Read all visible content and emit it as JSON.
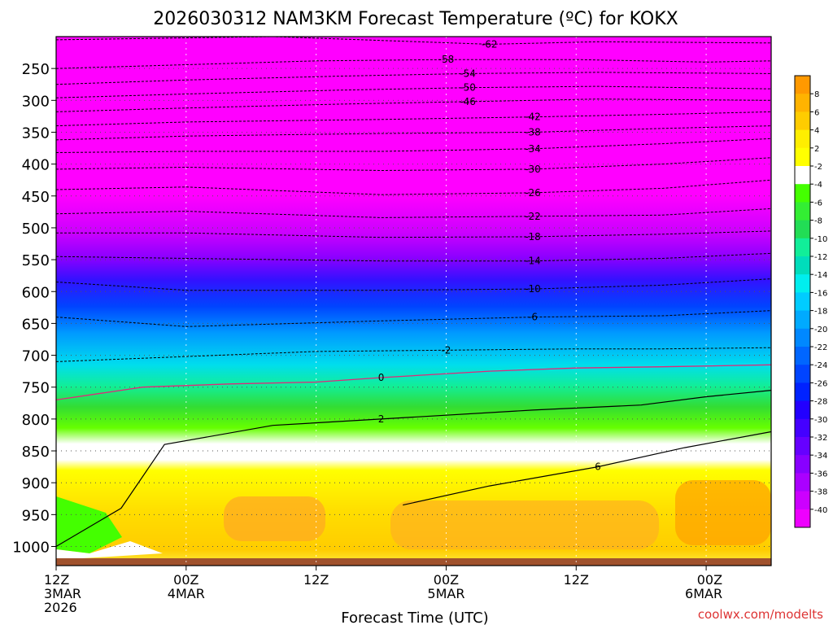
{
  "chart_data": {
    "type": "heatmap",
    "title": "2026030312 NAM3KM Forecast Temperature (ºC) for KOKX",
    "xlabel": "Forecast Time (UTC)",
    "ylabel": "",
    "x_domain": [
      0,
      66
    ],
    "y_domain": [
      200,
      1030
    ],
    "x_ticks": [
      {
        "hour": 0,
        "l1": "12Z",
        "l2": "3MAR",
        "l3": "2026"
      },
      {
        "hour": 12,
        "l1": "00Z",
        "l2": "4MAR",
        "l3": ""
      },
      {
        "hour": 24,
        "l1": "12Z",
        "l2": "",
        "l3": ""
      },
      {
        "hour": 36,
        "l1": "00Z",
        "l2": "5MAR",
        "l3": ""
      },
      {
        "hour": 48,
        "l1": "12Z",
        "l2": "",
        "l3": ""
      },
      {
        "hour": 60,
        "l1": "00Z",
        "l2": "6MAR",
        "l3": ""
      }
    ],
    "y_ticks": [
      {
        "p": 250,
        "label": "250"
      },
      {
        "p": 300,
        "label": "300"
      },
      {
        "p": 350,
        "label": "350"
      },
      {
        "p": 400,
        "label": "400"
      },
      {
        "p": 450,
        "label": "450"
      },
      {
        "p": 500,
        "label": "500"
      },
      {
        "p": 550,
        "label": "550"
      },
      {
        "p": 600,
        "label": "600"
      },
      {
        "p": 650,
        "label": "650"
      },
      {
        "p": 700,
        "label": "700"
      },
      {
        "p": 750,
        "label": "750"
      },
      {
        "p": 800,
        "label": "800"
      },
      {
        "p": 850,
        "label": "850"
      },
      {
        "p": 900,
        "label": "900"
      },
      {
        "p": 950,
        "label": "950"
      },
      {
        "p": 1000,
        "label": "1000"
      }
    ],
    "colorbar": {
      "labels": [
        "8",
        "6",
        "4",
        "2",
        "-2",
        "-4",
        "-6",
        "-8",
        "-10",
        "-12",
        "-14",
        "-16",
        "-18",
        "-20",
        "-22",
        "-24",
        "-26",
        "-28",
        "-30",
        "-32",
        "-34",
        "-36",
        "-38",
        "-40"
      ],
      "colors": [
        "#ff9900",
        "#ffb300",
        "#ffcc00",
        "#ffee00",
        "#ffff00",
        "#ffffff",
        "#44ff00",
        "#33ee33",
        "#22dd55",
        "#11ee99",
        "#00ddbb",
        "#00eeee",
        "#00ccff",
        "#00aaff",
        "#0088ff",
        "#0066ff",
        "#0044ff",
        "#0022ff",
        "#2200ff",
        "#4400ff",
        "#6600ff",
        "#8800ff",
        "#aa00ff",
        "#cc00ff",
        "#ee00ff"
      ]
    },
    "isotherms": [
      {
        "value": -62,
        "points": [
          [
            0,
            205
          ],
          [
            20,
            200
          ],
          [
            30,
            206
          ],
          [
            40,
            212
          ],
          [
            50,
            208
          ],
          [
            66,
            210
          ]
        ]
      },
      {
        "value": -58,
        "points": [
          [
            0,
            250
          ],
          [
            12,
            244
          ],
          [
            24,
            238
          ],
          [
            36,
            236
          ],
          [
            48,
            236
          ],
          [
            60,
            240
          ],
          [
            66,
            238
          ]
        ]
      },
      {
        "value": -54,
        "points": [
          [
            0,
            275
          ],
          [
            12,
            268
          ],
          [
            26,
            262
          ],
          [
            38,
            258
          ],
          [
            50,
            256
          ],
          [
            66,
            258
          ]
        ]
      },
      {
        "value": -50,
        "points": [
          [
            0,
            296
          ],
          [
            12,
            290
          ],
          [
            26,
            284
          ],
          [
            38,
            280
          ],
          [
            50,
            278
          ],
          [
            66,
            282
          ]
        ]
      },
      {
        "value": -46,
        "points": [
          [
            0,
            318
          ],
          [
            12,
            312
          ],
          [
            26,
            306
          ],
          [
            38,
            302
          ],
          [
            50,
            298
          ],
          [
            66,
            300
          ]
        ]
      },
      {
        "value": -42,
        "points": [
          [
            0,
            340
          ],
          [
            12,
            334
          ],
          [
            30,
            330
          ],
          [
            44,
            326
          ],
          [
            56,
            322
          ],
          [
            66,
            318
          ]
        ]
      },
      {
        "value": -38,
        "points": [
          [
            0,
            362
          ],
          [
            12,
            356
          ],
          [
            30,
            352
          ],
          [
            44,
            350
          ],
          [
            56,
            344
          ],
          [
            66,
            340
          ]
        ]
      },
      {
        "value": -34,
        "points": [
          [
            0,
            382
          ],
          [
            12,
            380
          ],
          [
            30,
            380
          ],
          [
            44,
            376
          ],
          [
            56,
            368
          ],
          [
            66,
            360
          ]
        ]
      },
      {
        "value": -30,
        "points": [
          [
            0,
            408
          ],
          [
            12,
            405
          ],
          [
            30,
            410
          ],
          [
            44,
            408
          ],
          [
            56,
            400
          ],
          [
            66,
            390
          ]
        ]
      },
      {
        "value": -26,
        "points": [
          [
            0,
            440
          ],
          [
            12,
            436
          ],
          [
            30,
            448
          ],
          [
            44,
            445
          ],
          [
            56,
            438
          ],
          [
            66,
            425
          ]
        ]
      },
      {
        "value": -22,
        "points": [
          [
            0,
            478
          ],
          [
            12,
            474
          ],
          [
            30,
            484
          ],
          [
            44,
            482
          ],
          [
            56,
            480
          ],
          [
            66,
            470
          ]
        ]
      },
      {
        "value": -18,
        "points": [
          [
            0,
            508
          ],
          [
            12,
            508
          ],
          [
            30,
            515
          ],
          [
            44,
            514
          ],
          [
            56,
            510
          ],
          [
            66,
            505
          ]
        ]
      },
      {
        "value": -14,
        "points": [
          [
            0,
            545
          ],
          [
            12,
            548
          ],
          [
            30,
            552
          ],
          [
            44,
            552
          ],
          [
            56,
            548
          ],
          [
            66,
            540
          ]
        ]
      },
      {
        "value": -10,
        "points": [
          [
            0,
            585
          ],
          [
            12,
            598
          ],
          [
            30,
            598
          ],
          [
            44,
            596
          ],
          [
            56,
            590
          ],
          [
            66,
            580
          ]
        ]
      },
      {
        "value": -6,
        "points": [
          [
            0,
            640
          ],
          [
            12,
            655
          ],
          [
            30,
            646
          ],
          [
            44,
            640
          ],
          [
            56,
            638
          ],
          [
            66,
            630
          ]
        ]
      },
      {
        "value": -2,
        "points": [
          [
            0,
            710
          ],
          [
            12,
            702
          ],
          [
            24,
            694
          ],
          [
            36,
            692
          ],
          [
            48,
            690
          ],
          [
            56,
            690
          ],
          [
            66,
            688
          ]
        ]
      }
    ],
    "freezing_line": {
      "value": 0,
      "points": [
        [
          0,
          770
        ],
        [
          8,
          750
        ],
        [
          16,
          745
        ],
        [
          24,
          742
        ],
        [
          30,
          735
        ],
        [
          40,
          725
        ],
        [
          48,
          720
        ],
        [
          56,
          718
        ],
        [
          66,
          715
        ]
      ]
    },
    "warm_isotherms": [
      {
        "value": 2,
        "points": [
          [
            0,
            1000
          ],
          [
            6,
            940
          ],
          [
            10,
            840
          ],
          [
            20,
            810
          ],
          [
            30,
            800
          ],
          [
            44,
            786
          ],
          [
            54,
            778
          ],
          [
            60,
            765
          ],
          [
            66,
            755
          ]
        ]
      },
      {
        "value": 6,
        "points": [
          [
            32,
            935
          ],
          [
            40,
            905
          ],
          [
            50,
            875
          ],
          [
            58,
            845
          ],
          [
            66,
            820
          ]
        ]
      }
    ],
    "credit": "coolwx.com/modelts"
  }
}
